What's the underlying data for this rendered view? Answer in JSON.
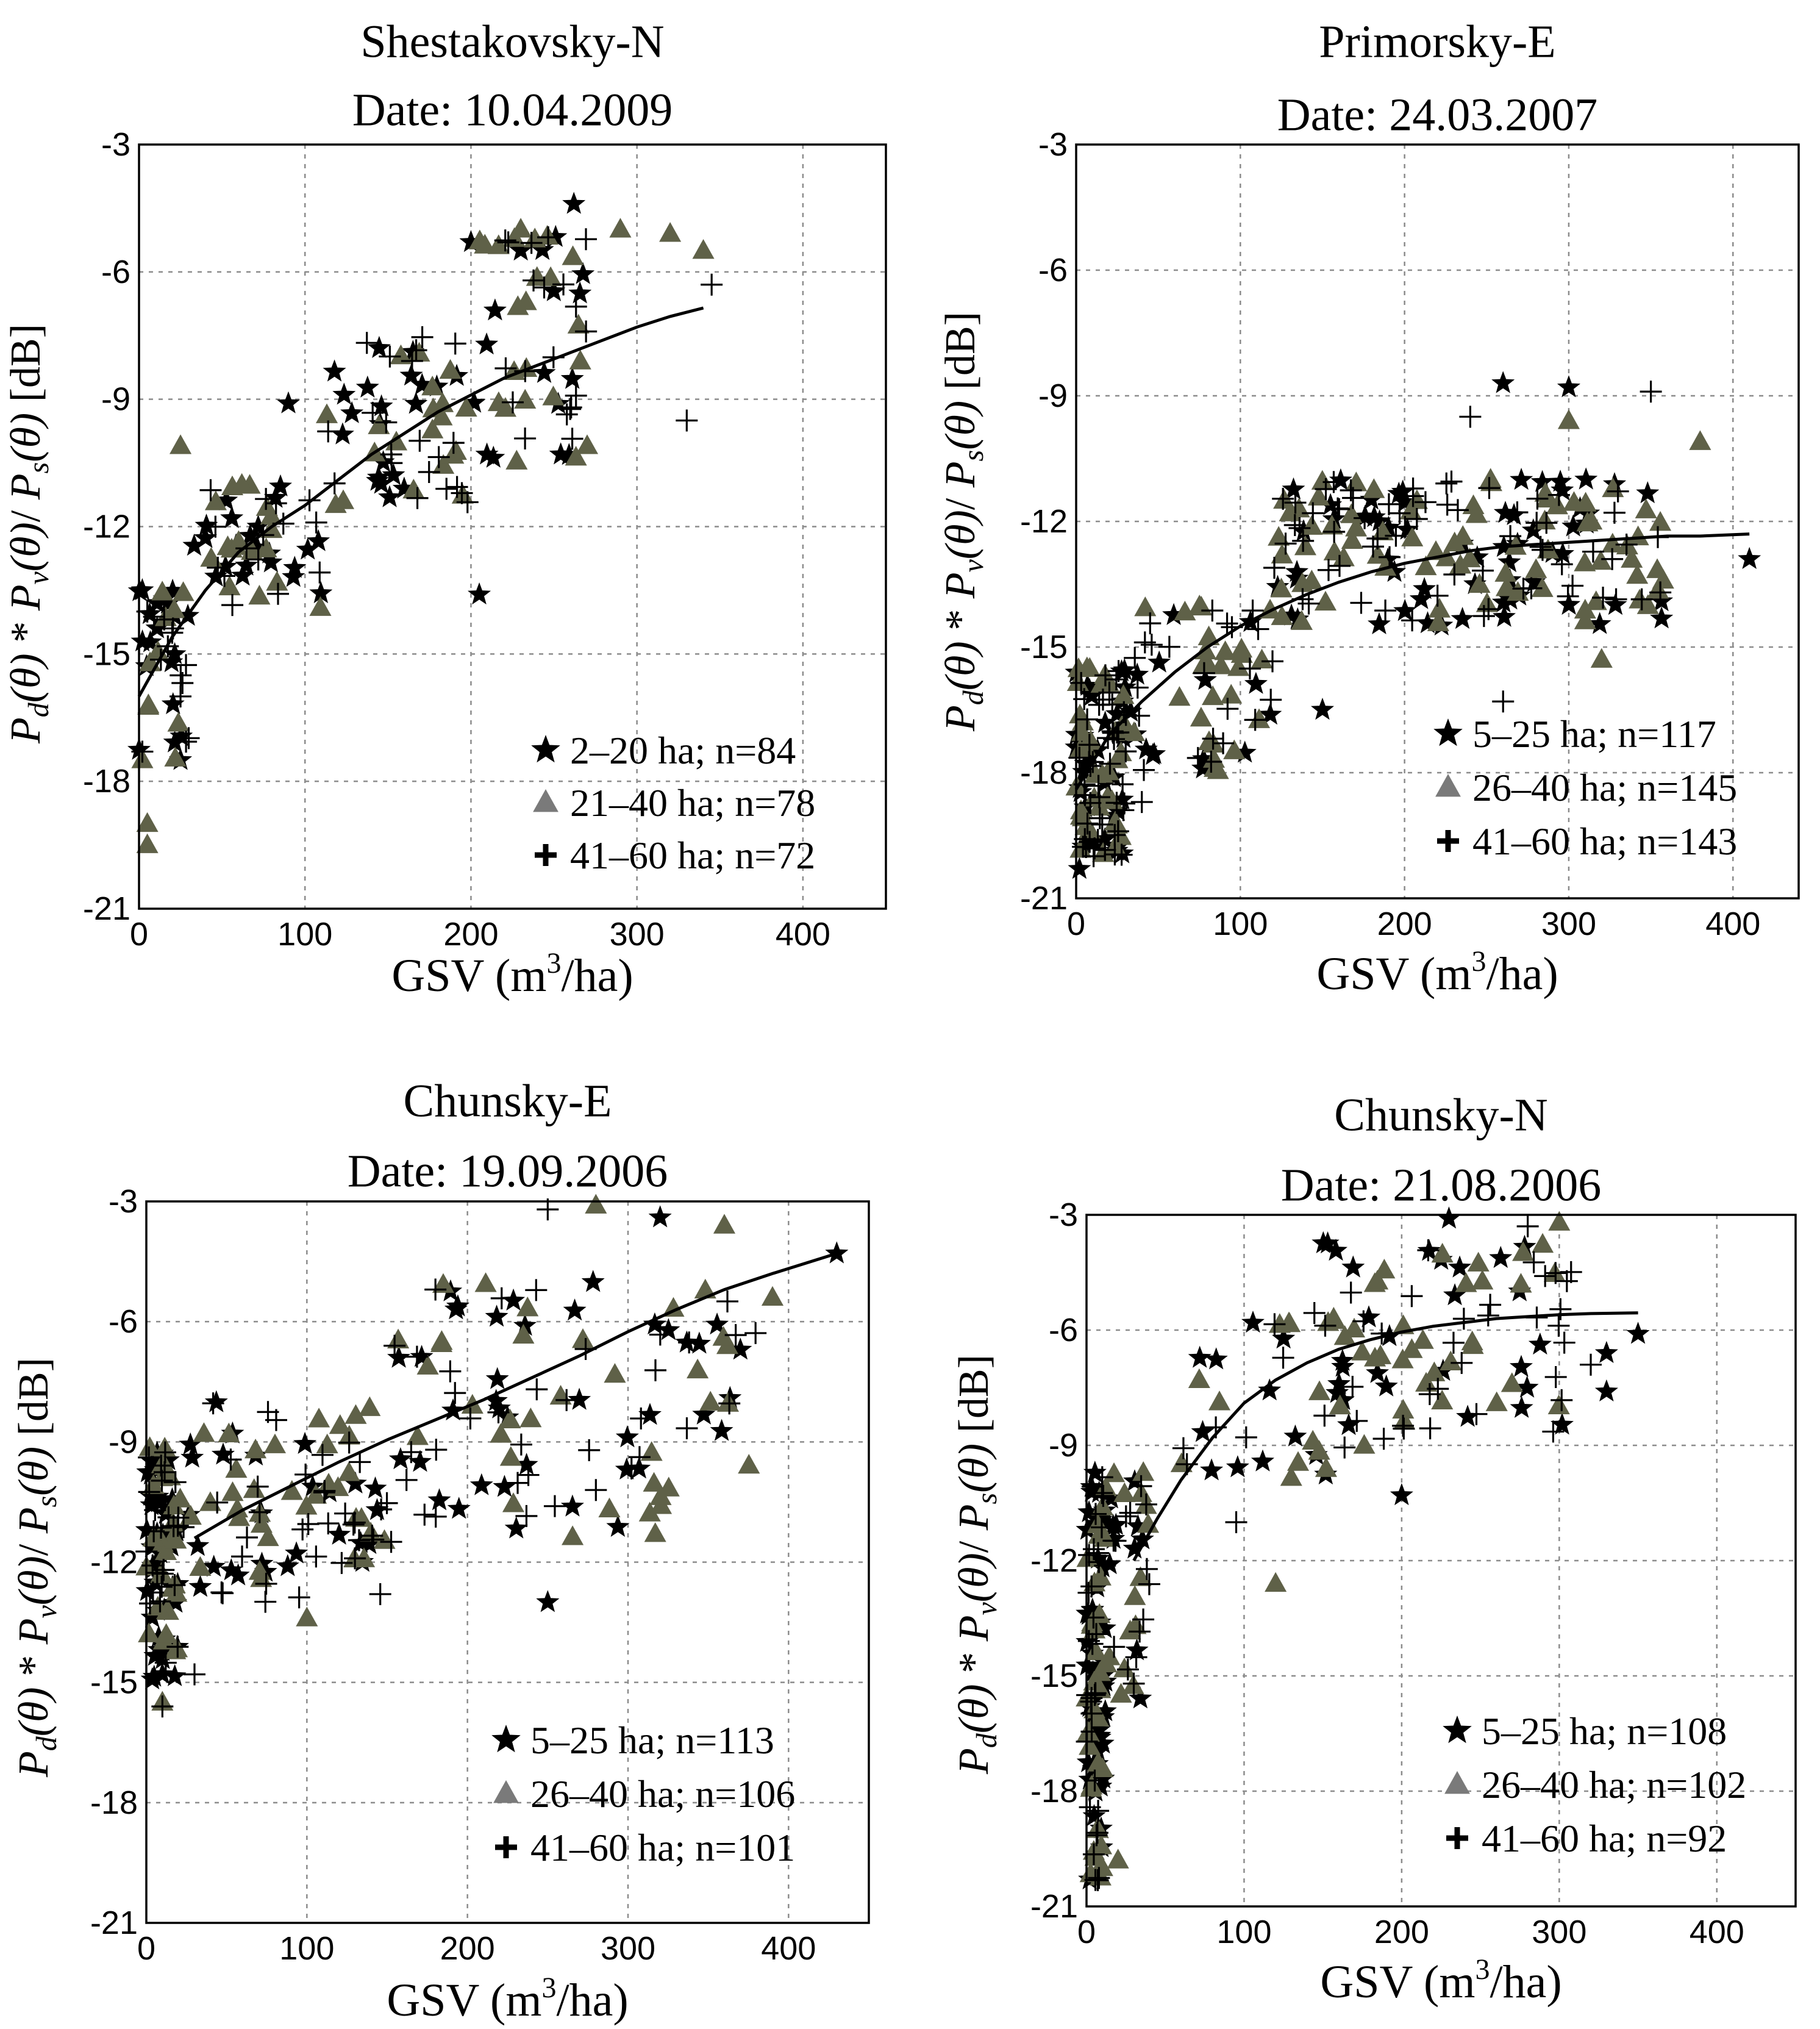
{
  "figure": {
    "ylabel": {
      "p1": "P",
      "s1": "d",
      "t1": "(θ)",
      "m1": " * ",
      "p2": "P",
      "s2": "v",
      "t2": "(θ)",
      "m2": "/ ",
      "p3": "P",
      "s3": "s",
      "t3": "(θ)",
      "unit": " [dB]"
    },
    "xlabel": {
      "pre": "GSV (m",
      "sup": "3",
      "post": "/ha)"
    },
    "colors": {
      "stars": "#000000",
      "triangles": "#5f6148",
      "crosses": "#000000",
      "fit": "#000000",
      "grid": "#8c8c8c",
      "legend_triangle_icon": "#7a7a7a"
    }
  },
  "chart_data": [
    {
      "type": "scatter",
      "title": "Shestakovsky-N",
      "subtitle": "Date: 10.04.2009",
      "xlim": [
        0,
        450
      ],
      "ylim": [
        -21,
        -3
      ],
      "xticks": [
        0,
        100,
        200,
        300,
        400
      ],
      "yticks": [
        -3,
        -6,
        -9,
        -12,
        -15,
        -18,
        -21
      ],
      "grid": true,
      "legend_position": "bottom-right",
      "legend": [
        "2–20 ha; n=84",
        "21–40 ha; n=78",
        "41–60 ha; n=72"
      ],
      "seed": 11,
      "clusters": [
        {
          "x": [
            0,
            30
          ],
          "y": [
            -17.5,
            -13.5
          ],
          "w": 0.15
        },
        {
          "x": [
            30,
            110
          ],
          "y": [
            -14,
            -11
          ],
          "w": 0.25
        },
        {
          "x": [
            110,
            200
          ],
          "y": [
            -11.5,
            -7.5
          ],
          "w": 0.3
        },
        {
          "x": [
            200,
            270
          ],
          "y": [
            -10.5,
            -5
          ],
          "w": 0.3
        }
      ],
      "fit": {
        "x": [
          0,
          20,
          40,
          60,
          80,
          100,
          120,
          140,
          160,
          180,
          200,
          220,
          240,
          260,
          280,
          300,
          320,
          340
        ],
        "y": [
          -16,
          -14.6,
          -13.5,
          -12.6,
          -12,
          -11.5,
          -10.9,
          -10.3,
          -9.8,
          -9.3,
          -8.9,
          -8.5,
          -8.2,
          -7.9,
          -7.6,
          -7.3,
          -7.05,
          -6.85
        ]
      },
      "series": [
        {
          "name": "2–20 ha",
          "marker": "star",
          "n": 84,
          "x": [
            0,
            260
          ],
          "y": [
            -13,
            -7
          ],
          "points": [
            [
              262,
              -4.4
            ],
            [
              200,
              -5.3
            ],
            [
              230,
              -5.5
            ],
            [
              205,
              -13.6
            ],
            [
              90,
              -9.1
            ],
            [
              25,
              -17.5
            ],
            [
              2,
              -13.5
            ]
          ]
        },
        {
          "name": "21–40 ha",
          "marker": "triangle",
          "n": 78,
          "x": [
            0,
            280
          ],
          "y": [
            -12,
            -7
          ],
          "points": [
            [
              5,
              -19
            ],
            [
              5,
              -19.5
            ],
            [
              2,
              -17.5
            ],
            [
              290,
              -5
            ],
            [
              320,
              -5.1
            ],
            [
              340,
              -5.5
            ],
            [
              230,
              -5
            ],
            [
              270,
              -10.1
            ],
            [
              25,
              -10.1
            ]
          ]
        },
        {
          "name": "41–60 ha",
          "marker": "cross",
          "n": 72,
          "x": [
            0,
            280
          ],
          "y": [
            -12,
            -7
          ],
          "points": [
            [
              330,
              -9.5
            ],
            [
              345,
              -6.3
            ],
            [
              2,
              -17.3
            ],
            [
              25,
              -16
            ],
            [
              5,
              -14
            ],
            [
              20,
              -14.5
            ]
          ]
        }
      ]
    },
    {
      "type": "scatter",
      "title": "Primorsky-E",
      "subtitle": "Date: 24.03.2007",
      "xlim": [
        0,
        440
      ],
      "ylim": [
        -21,
        -3
      ],
      "xticks": [
        0,
        100,
        200,
        300,
        400
      ],
      "yticks": [
        -3,
        -6,
        -9,
        -12,
        -15,
        -18,
        -21
      ],
      "grid": true,
      "legend_position": "bottom-right",
      "legend": [
        "5–25 ha; n=117",
        "26–40 ha; n=145",
        "41–60 ha; n=143"
      ],
      "seed": 22,
      "clusters": [
        {
          "x": [
            0,
            30
          ],
          "y": [
            -20,
            -15.5
          ],
          "w": 0.3
        },
        {
          "x": [
            30,
            120
          ],
          "y": [
            -18,
            -14
          ],
          "w": 0.15
        },
        {
          "x": [
            120,
            360
          ],
          "y": [
            -14.5,
            -11
          ],
          "w": 0.55
        }
      ],
      "fit": {
        "x": [
          0,
          20,
          40,
          60,
          80,
          100,
          120,
          140,
          160,
          180,
          200,
          220,
          240,
          260,
          280,
          300,
          320,
          340,
          360,
          380,
          410
        ],
        "y": [
          -18.4,
          -17.1,
          -16.3,
          -15.6,
          -15,
          -14.5,
          -14.1,
          -13.75,
          -13.45,
          -13.2,
          -13,
          -12.85,
          -12.7,
          -12.6,
          -12.55,
          -12.5,
          -12.45,
          -12.4,
          -12.35,
          -12.35,
          -12.3
        ]
      },
      "series": [
        {
          "name": "5–25 ha",
          "marker": "star",
          "n": 117,
          "x": [
            0,
            360
          ],
          "y": [
            -15,
            -11
          ],
          "points": [
            [
              260,
              -8.7
            ],
            [
              300,
              -8.8
            ],
            [
              410,
              -12.9
            ],
            [
              2,
              -20.3
            ],
            [
              150,
              -16.5
            ]
          ]
        },
        {
          "name": "26–40 ha",
          "marker": "triangle",
          "n": 145,
          "x": [
            0,
            360
          ],
          "y": [
            -15,
            -11
          ],
          "points": [
            [
              380,
              -10.1
            ],
            [
              300,
              -9.6
            ],
            [
              320,
              -15.3
            ]
          ]
        },
        {
          "name": "41–60 ha",
          "marker": "cross",
          "n": 143,
          "x": [
            0,
            360
          ],
          "y": [
            -15,
            -11
          ],
          "points": [
            [
              260,
              -16.3
            ],
            [
              350,
              -8.9
            ],
            [
              240,
              -9.5
            ],
            [
              40,
              -18.7
            ]
          ]
        }
      ]
    },
    {
      "type": "scatter",
      "title": "Chunsky-E",
      "subtitle": "Date: 19.09.2006",
      "xlim": [
        0,
        450
      ],
      "ylim": [
        -21,
        -3
      ],
      "xticks": [
        0,
        100,
        200,
        300,
        400
      ],
      "yticks": [
        -3,
        -6,
        -9,
        -12,
        -15,
        -18,
        -21
      ],
      "grid": true,
      "legend_position": "bottom-right",
      "legend": [
        "5–25 ha; n=113",
        "26–40 ha; n=106",
        "41–60 ha; n=101"
      ],
      "seed": 33,
      "clusters": [
        {
          "x": [
            0,
            20
          ],
          "y": [
            -15,
            -9
          ],
          "w": 0.3
        },
        {
          "x": [
            20,
            150
          ],
          "y": [
            -13,
            -8
          ],
          "w": 0.3
        },
        {
          "x": [
            150,
            380
          ],
          "y": [
            -11.5,
            -5
          ],
          "w": 0.4
        }
      ],
      "fit": {
        "x": [
          30,
          60,
          90,
          120,
          150,
          180,
          210,
          240,
          270,
          300,
          330,
          360,
          390,
          430
        ],
        "y": [
          -11.4,
          -10.7,
          -10.1,
          -9.5,
          -8.95,
          -8.45,
          -7.95,
          -7.4,
          -6.85,
          -6.25,
          -5.7,
          -5.2,
          -4.8,
          -4.3
        ]
      },
      "series": [
        {
          "name": "5–25 ha",
          "marker": "star",
          "n": 113,
          "x": [
            0,
            380
          ],
          "y": [
            -13,
            -6
          ],
          "points": [
            [
              430,
              -4.3
            ],
            [
              320,
              -3.4
            ],
            [
              250,
              -13
            ],
            [
              370,
              -6.7
            ],
            [
              10,
              -14.8
            ]
          ]
        },
        {
          "name": "26–40 ha",
          "marker": "triangle",
          "n": 106,
          "x": [
            0,
            380
          ],
          "y": [
            -13,
            -6
          ],
          "points": [
            [
              280,
              -3.1
            ],
            [
              360,
              -3.6
            ],
            [
              390,
              -5.4
            ],
            [
              10,
              -15.5
            ],
            [
              100,
              -13.4
            ]
          ]
        },
        {
          "name": "41–60 ha",
          "marker": "cross",
          "n": 101,
          "x": [
            0,
            380
          ],
          "y": [
            -13,
            -6
          ],
          "points": [
            [
              250,
              -3.2
            ],
            [
              280,
              -10.2
            ],
            [
              30,
              -14.8
            ],
            [
              10,
              -15.6
            ]
          ]
        }
      ]
    },
    {
      "type": "scatter",
      "title": "Chunsky-N",
      "subtitle": "Date: 21.08.2006",
      "xlim": [
        0,
        450
      ],
      "ylim": [
        -21,
        -3
      ],
      "xticks": [
        0,
        100,
        200,
        300,
        400
      ],
      "yticks": [
        -3,
        -6,
        -9,
        -12,
        -15,
        -18,
        -21
      ],
      "grid": true,
      "legend_position": "bottom-right",
      "legend": [
        "5–25 ha; n=108",
        "26–40 ha; n=102",
        "41–60 ha; n=92"
      ],
      "seed": 44,
      "clusters": [
        {
          "x": [
            0,
            12
          ],
          "y": [
            -20.5,
            -9.5
          ],
          "w": 0.4
        },
        {
          "x": [
            12,
            40
          ],
          "y": [
            -16,
            -9.5
          ],
          "w": 0.15
        },
        {
          "x": [
            60,
            180
          ],
          "y": [
            -10,
            -5.5
          ],
          "w": 0.15
        },
        {
          "x": [
            150,
            310
          ],
          "y": [
            -9,
            -3.5
          ],
          "w": 0.3
        }
      ],
      "fit": {
        "x": [
          30,
          45,
          60,
          80,
          100,
          120,
          140,
          160,
          180,
          200,
          220,
          240,
          260,
          280,
          300,
          320,
          350
        ],
        "y": [
          -12,
          -10.9,
          -9.9,
          -8.8,
          -7.9,
          -7.3,
          -6.85,
          -6.5,
          -6.25,
          -6.05,
          -5.9,
          -5.8,
          -5.7,
          -5.65,
          -5.6,
          -5.57,
          -5.55
        ]
      },
      "series": [
        {
          "name": "5–25 ha",
          "marker": "star",
          "n": 108,
          "x": [
            0,
            300
          ],
          "y": [
            -16,
            -5
          ],
          "points": [
            [
              350,
              -6.1
            ],
            [
              330,
              -7.6
            ],
            [
              330,
              -6.6
            ],
            [
              200,
              -10.3
            ],
            [
              2,
              -20.3
            ],
            [
              230,
              -3.1
            ]
          ]
        },
        {
          "name": "26–40 ha",
          "marker": "triangle",
          "n": 102,
          "x": [
            0,
            300
          ],
          "y": [
            -16,
            -5
          ],
          "points": [
            [
              300,
              -3.2
            ],
            [
              270,
              -7.4
            ],
            [
              120,
              -12.6
            ],
            [
              20,
              -19.8
            ],
            [
              10,
              -20
            ]
          ]
        },
        {
          "name": "41–60 ha",
          "marker": "cross",
          "n": 92,
          "x": [
            0,
            300
          ],
          "y": [
            -16,
            -5
          ],
          "points": [
            [
              320,
              -6.9
            ],
            [
              280,
              -3.3
            ],
            [
              95,
              -11
            ],
            [
              30,
              -15.2
            ]
          ]
        }
      ]
    }
  ]
}
